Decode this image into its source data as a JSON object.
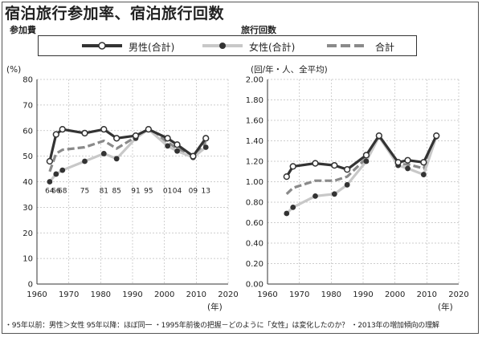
{
  "header": {
    "title": "宿泊旅行参加率、宿泊旅行回数",
    "left_subtitle": "参加費",
    "right_subtitle": "旅行回数"
  },
  "legend": {
    "items": [
      "男性(合計)",
      "女性(合計)",
      "合計"
    ]
  },
  "footer": {
    "note": "・95年以前：男性＞女性 95年以降：ほぼ同一 ・1995年前後の把握－どのように「女性」は変化したのか？ ・2013年の増加傾向の理解"
  },
  "colors": {
    "male": "#333333",
    "female": "#c8c8c8",
    "total": "#8a8a8a",
    "female_marker": "#333333",
    "grid": "#bdbdbd"
  },
  "chart_data": [
    {
      "type": "line",
      "unit_label": "(%)",
      "x_unit_label": "(年)",
      "xlim": [
        1960,
        2020
      ],
      "ylim": [
        0,
        80
      ],
      "x_ticks": [
        1960,
        1970,
        1980,
        1990,
        2000,
        2010,
        2020
      ],
      "y_ticks": [
        0,
        10,
        20,
        30,
        40,
        50,
        60,
        70,
        80
      ],
      "grid": true,
      "annotations": [
        {
          "text": "64",
          "x": 1964
        },
        {
          "text": "66",
          "x": 1966
        },
        {
          "text": "68",
          "x": 1968
        },
        {
          "text": "75",
          "x": 1975
        },
        {
          "text": "81",
          "x": 1981
        },
        {
          "text": "85",
          "x": 1985
        },
        {
          "text": "91",
          "x": 1991
        },
        {
          "text": "95",
          "x": 1995
        },
        {
          "text": "01",
          "x": 2001
        },
        {
          "text": "04",
          "x": 2004
        },
        {
          "text": "09",
          "x": 2009
        },
        {
          "text": "13",
          "x": 2013
        }
      ],
      "series": [
        {
          "name": "男性(合計)",
          "x": [
            1964,
            1966,
            1968,
            1975,
            1981,
            1985,
            1991,
            1995,
            2001,
            2004,
            2009,
            2013
          ],
          "values": [
            48,
            58.5,
            60.5,
            59,
            60.5,
            57,
            58,
            60.5,
            57,
            54.5,
            50,
            57
          ]
        },
        {
          "name": "女性(合計)",
          "x": [
            1964,
            1966,
            1968,
            1975,
            1981,
            1985,
            1991,
            1995,
            2001,
            2004,
            2009,
            2013
          ],
          "values": [
            40,
            43,
            44.5,
            48,
            51,
            49,
            57,
            60.5,
            54,
            52,
            49.5,
            53.5
          ]
        },
        {
          "name": "合計",
          "x": [
            1964,
            1966,
            1968,
            1975,
            1981,
            1985,
            1991,
            1995,
            2001,
            2004,
            2009,
            2013
          ],
          "values": [
            44,
            51,
            52.5,
            53.5,
            56,
            53,
            57.5,
            60.5,
            55.5,
            53,
            50,
            55.5
          ]
        }
      ]
    },
    {
      "type": "line",
      "unit_label": "(回/年・人、全平均)",
      "x_unit_label": "(年)",
      "xlim": [
        1960,
        2020
      ],
      "ylim": [
        0,
        2.0
      ],
      "x_ticks": [
        1960,
        1970,
        1980,
        1990,
        2000,
        2010,
        2020
      ],
      "y_ticks": [
        "0.00",
        "0.20",
        "0.40",
        "0.60",
        "0.80",
        "1.00",
        "1.20",
        "1.40",
        "1.60",
        "1.80",
        "2.00"
      ],
      "grid": true,
      "series": [
        {
          "name": "男性(合計)",
          "x": [
            1966,
            1968,
            1975,
            1981,
            1985,
            1991,
            1995,
            2001,
            2004,
            2009,
            2013
          ],
          "values": [
            1.05,
            1.15,
            1.18,
            1.16,
            1.12,
            1.26,
            1.45,
            1.19,
            1.21,
            1.19,
            1.45
          ]
        },
        {
          "name": "女性(合計)",
          "x": [
            1966,
            1968,
            1975,
            1981,
            1985,
            1991,
            1995,
            2001,
            2004,
            2009,
            2013
          ],
          "values": [
            0.69,
            0.75,
            0.86,
            0.88,
            0.97,
            1.2,
            1.44,
            1.16,
            1.13,
            1.07,
            1.44
          ]
        },
        {
          "name": "合計",
          "x": [
            1966,
            1968,
            1975,
            1981,
            1985,
            1991,
            1995,
            2001,
            2004,
            2009,
            2013
          ],
          "values": [
            0.88,
            0.94,
            1.01,
            1.01,
            1.05,
            1.23,
            1.45,
            1.17,
            1.17,
            1.13,
            1.45
          ]
        }
      ]
    }
  ]
}
